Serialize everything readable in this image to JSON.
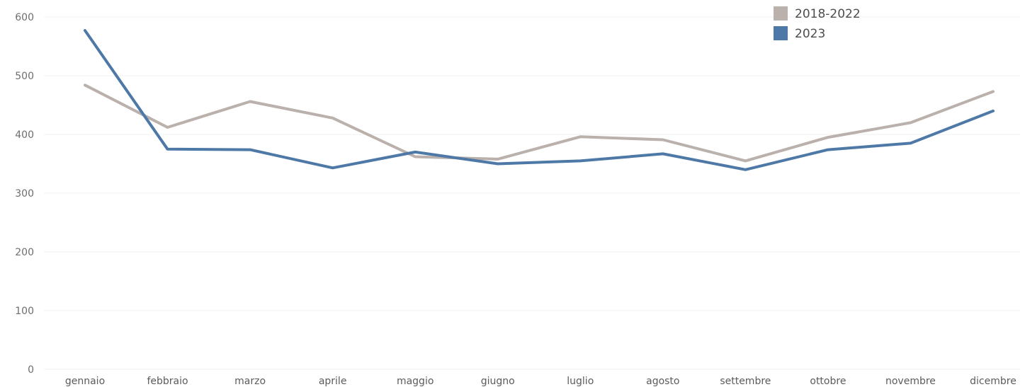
{
  "chart_data": {
    "type": "line",
    "categories": [
      "gennaio",
      "febbraio",
      "marzo",
      "aprile",
      "maggio",
      "giugno",
      "luglio",
      "agosto",
      "settembre",
      "ottobre",
      "novembre",
      "dicembre"
    ],
    "series": [
      {
        "name": "2018-2022",
        "color": "#bab0ac",
        "values": [
          484,
          412,
          456,
          428,
          362,
          358,
          396,
          391,
          355,
          395,
          420,
          473
        ]
      },
      {
        "name": "2023",
        "color": "#4e79a7",
        "values": [
          577,
          375,
          374,
          343,
          370,
          350,
          355,
          367,
          340,
          374,
          385,
          440
        ]
      }
    ],
    "title": "",
    "xlabel": "",
    "ylabel": "",
    "ylim": [
      0,
      600
    ],
    "yticks": [
      0,
      100,
      200,
      300,
      400,
      500,
      600
    ],
    "grid": true,
    "legend_position": "top-right"
  }
}
